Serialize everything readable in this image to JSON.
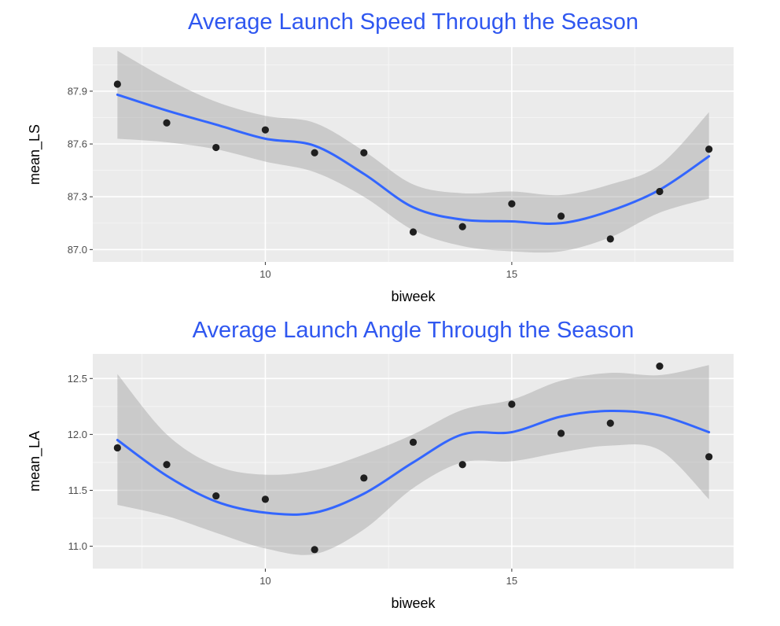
{
  "chart_data": [
    {
      "type": "scatter",
      "title": "Average Launch Speed Through the Season",
      "xlabel": "biweek",
      "ylabel": "mean_LS",
      "xlim": [
        6.5,
        19.5
      ],
      "ylim": [
        86.93,
        88.15
      ],
      "x_ticks": [
        10,
        15
      ],
      "x_tick_labels": [
        "10",
        "15"
      ],
      "y_ticks": [
        87.0,
        87.3,
        87.6,
        87.9
      ],
      "y_tick_labels": [
        "87.0",
        "87.3",
        "87.6",
        "87.9"
      ],
      "grid": true,
      "points": {
        "x": [
          7,
          8,
          9,
          10,
          11,
          12,
          13,
          14,
          15,
          16,
          17,
          18,
          19
        ],
        "y": [
          87.94,
          87.72,
          87.58,
          87.68,
          87.55,
          87.55,
          87.1,
          87.13,
          87.26,
          87.19,
          87.06,
          87.33,
          87.57
        ]
      },
      "smooth": {
        "x": [
          7,
          8,
          9,
          10,
          11,
          12,
          13,
          14,
          15,
          16,
          17,
          18,
          19
        ],
        "y": [
          87.88,
          87.79,
          87.71,
          87.63,
          87.59,
          87.43,
          87.24,
          87.17,
          87.16,
          87.15,
          87.22,
          87.34,
          87.53
        ],
        "lower": [
          87.63,
          87.61,
          87.57,
          87.5,
          87.44,
          87.3,
          87.11,
          87.02,
          86.99,
          86.99,
          87.07,
          87.21,
          87.29
        ],
        "upper": [
          88.13,
          87.97,
          87.84,
          87.76,
          87.72,
          87.56,
          87.37,
          87.32,
          87.33,
          87.31,
          87.37,
          87.48,
          87.78
        ]
      },
      "colors": {
        "point": "#1f1f1f",
        "line": "#3366ff",
        "band": "#999999",
        "panel": "#ebebeb",
        "title": "#2f57f0"
      }
    },
    {
      "type": "scatter",
      "title": "Average Launch Angle Through the Season",
      "xlabel": "biweek",
      "ylabel": "mean_LA",
      "xlim": [
        6.5,
        19.5
      ],
      "ylim": [
        10.8,
        12.72
      ],
      "x_ticks": [
        10,
        15
      ],
      "x_tick_labels": [
        "10",
        "15"
      ],
      "y_ticks": [
        11.0,
        11.5,
        12.0,
        12.5
      ],
      "y_tick_labels": [
        "11.0",
        "11.5",
        "12.0",
        "12.5"
      ],
      "grid": true,
      "points": {
        "x": [
          7,
          8,
          9,
          10,
          11,
          12,
          13,
          14,
          15,
          16,
          17,
          18,
          19
        ],
        "y": [
          11.88,
          11.73,
          11.45,
          11.42,
          10.97,
          11.61,
          11.93,
          11.73,
          12.27,
          12.01,
          12.1,
          12.61,
          11.8
        ]
      },
      "smooth": {
        "x": [
          7,
          8,
          9,
          10,
          11,
          12,
          13,
          14,
          15,
          16,
          17,
          18,
          19
        ],
        "y": [
          11.95,
          11.63,
          11.4,
          11.3,
          11.3,
          11.47,
          11.75,
          12.0,
          12.02,
          12.16,
          12.21,
          12.17,
          12.02
        ],
        "lower": [
          11.37,
          11.27,
          11.12,
          10.98,
          10.93,
          11.15,
          11.52,
          11.75,
          11.76,
          11.84,
          11.9,
          11.86,
          11.42
        ],
        "upper": [
          12.54,
          12.0,
          11.72,
          11.64,
          11.68,
          11.82,
          12.0,
          12.22,
          12.31,
          12.48,
          12.55,
          12.53,
          12.62
        ]
      },
      "colors": {
        "point": "#1f1f1f",
        "line": "#3366ff",
        "band": "#999999",
        "panel": "#ebebeb",
        "title": "#2f57f0"
      }
    }
  ]
}
